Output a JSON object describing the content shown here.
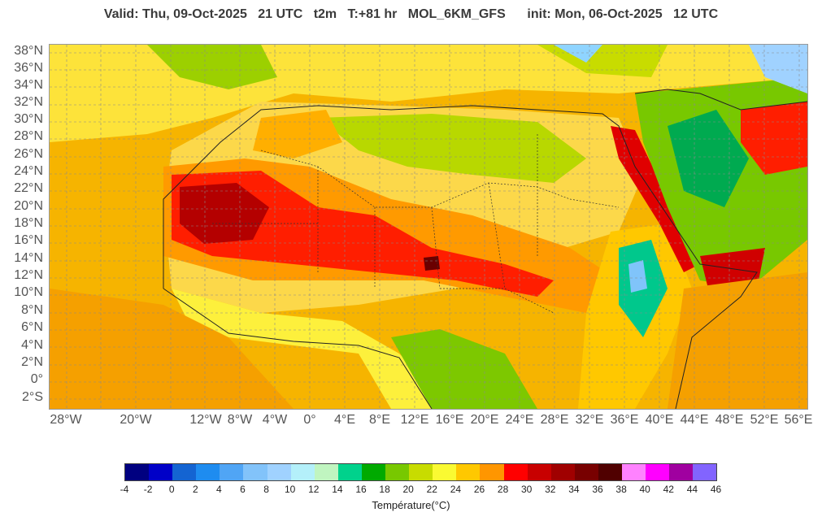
{
  "header": {
    "valid": "Valid: Thu, 09-Oct-2025   21 UTC   t2m   T:+81 hr   MOL_6KM_GFS      init: Mon, 06-Oct-2025   12 UTC"
  },
  "map": {
    "lat_labels": [
      "38°N",
      "36°N",
      "34°N",
      "32°N",
      "30°N",
      "28°N",
      "26°N",
      "24°N",
      "22°N",
      "20°N",
      "18°N",
      "16°N",
      "14°N",
      "12°N",
      "10°N",
      "8°N",
      "6°N",
      "4°N",
      "2°N",
      "0°",
      "2°S"
    ],
    "lon_labels": [
      "28°W",
      "20°W",
      "12°W",
      "8°W",
      "4°W",
      "0°",
      "4°E",
      "8°E",
      "12°E",
      "16°E",
      "20°E",
      "24°E",
      "28°E",
      "32°E",
      "36°E",
      "40°E",
      "44°E",
      "48°E",
      "52°E",
      "56°E"
    ]
  },
  "legend": {
    "colors": [
      "#000080",
      "#0000c8",
      "#1464d2",
      "#1e8cf0",
      "#50a5f5",
      "#82c3fa",
      "#a0d2ff",
      "#b4f0fa",
      "#c0f5c0",
      "#00d28c",
      "#00aa00",
      "#78c800",
      "#c8dc00",
      "#fafa32",
      "#ffc800",
      "#ff9600",
      "#ff0000",
      "#c80000",
      "#a00000",
      "#780000",
      "#500000",
      "#ff82ff",
      "#ff00ff",
      "#a000a0",
      "#8264ff"
    ],
    "ticks": [
      "-4",
      "-2",
      "0",
      "2",
      "4",
      "6",
      "8",
      "10",
      "12",
      "14",
      "16",
      "18",
      "20",
      "22",
      "24",
      "26",
      "28",
      "30",
      "32",
      "34",
      "36",
      "38",
      "40",
      "42",
      "44",
      "46"
    ],
    "unit_label": "Température(°C)"
  }
}
